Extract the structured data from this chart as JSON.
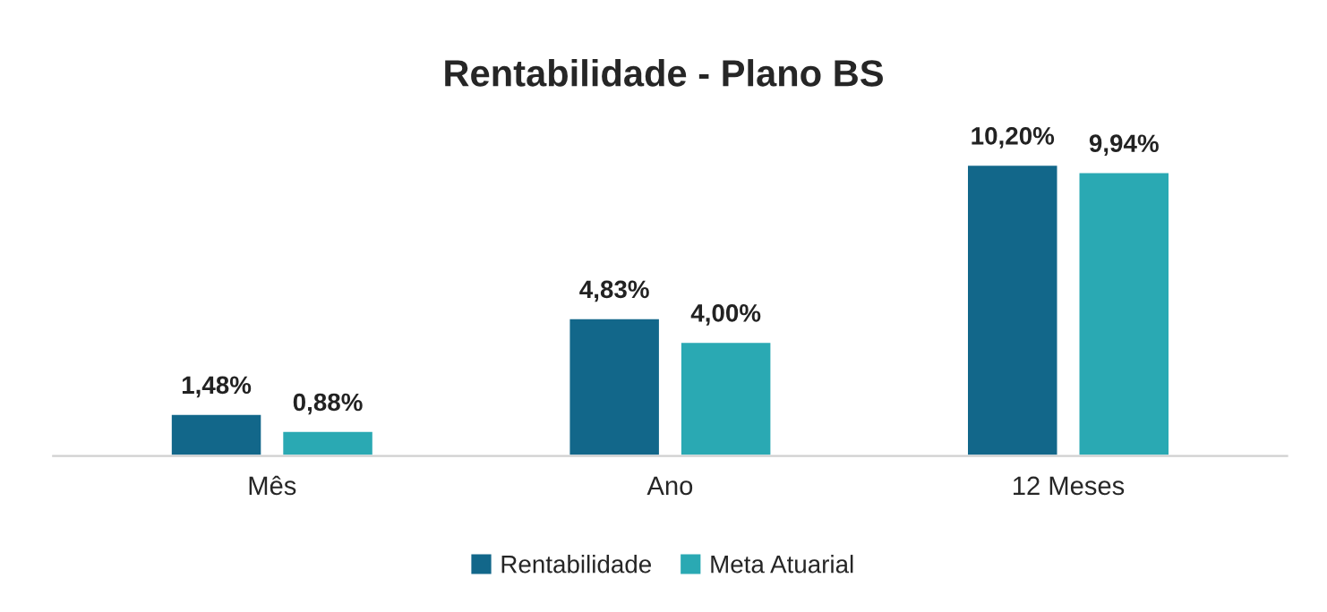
{
  "chart_data": {
    "type": "bar",
    "title": "Rentabilidade - Plano BS",
    "categories": [
      "Mês",
      "Ano",
      "12 Meses"
    ],
    "series": [
      {
        "name": "Rentabilidade",
        "color": "#12678a",
        "values": [
          1.48,
          4.83,
          10.2
        ],
        "value_labels": [
          "1,48%",
          "4,83%",
          "10,20%"
        ]
      },
      {
        "name": "Meta Atuarial",
        "color": "#2aa9b3",
        "values": [
          0.88,
          4.0,
          9.94
        ],
        "value_labels": [
          "0,88%",
          "4,00%",
          "9,94%"
        ]
      }
    ],
    "legend": "bottom"
  }
}
